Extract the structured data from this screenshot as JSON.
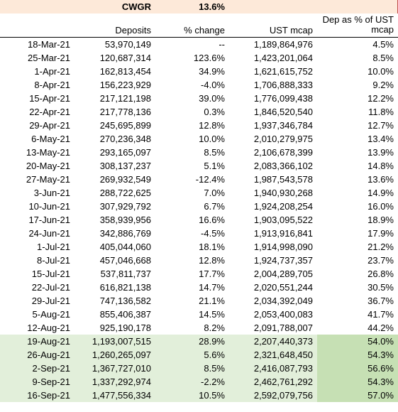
{
  "cwgr": {
    "label": "CWGR",
    "value": "13.6%"
  },
  "headers": {
    "date": "",
    "deposits": "Deposits",
    "change": "% change",
    "mcap": "UST mcap",
    "pct": "Dep as % of UST mcap"
  },
  "rows": [
    {
      "date": "18-Mar-21",
      "dep": "53,970,149",
      "chg": "--",
      "mcap": "1,189,864,976",
      "pct": "4.5%",
      "hl": false
    },
    {
      "date": "25-Mar-21",
      "dep": "120,687,314",
      "chg": "123.6%",
      "mcap": "1,423,201,064",
      "pct": "8.5%",
      "hl": false
    },
    {
      "date": "1-Apr-21",
      "dep": "162,813,454",
      "chg": "34.9%",
      "mcap": "1,621,615,752",
      "pct": "10.0%",
      "hl": false
    },
    {
      "date": "8-Apr-21",
      "dep": "156,223,929",
      "chg": "-4.0%",
      "mcap": "1,706,888,333",
      "pct": "9.2%",
      "hl": false
    },
    {
      "date": "15-Apr-21",
      "dep": "217,121,198",
      "chg": "39.0%",
      "mcap": "1,776,099,438",
      "pct": "12.2%",
      "hl": false
    },
    {
      "date": "22-Apr-21",
      "dep": "217,778,136",
      "chg": "0.3%",
      "mcap": "1,846,520,540",
      "pct": "11.8%",
      "hl": false
    },
    {
      "date": "29-Apr-21",
      "dep": "245,695,899",
      "chg": "12.8%",
      "mcap": "1,937,346,784",
      "pct": "12.7%",
      "hl": false
    },
    {
      "date": "6-May-21",
      "dep": "270,236,348",
      "chg": "10.0%",
      "mcap": "2,010,279,975",
      "pct": "13.4%",
      "hl": false
    },
    {
      "date": "13-May-21",
      "dep": "293,165,097",
      "chg": "8.5%",
      "mcap": "2,106,678,399",
      "pct": "13.9%",
      "hl": false
    },
    {
      "date": "20-May-21",
      "dep": "308,137,237",
      "chg": "5.1%",
      "mcap": "2,083,366,102",
      "pct": "14.8%",
      "hl": false
    },
    {
      "date": "27-May-21",
      "dep": "269,932,549",
      "chg": "-12.4%",
      "mcap": "1,987,543,578",
      "pct": "13.6%",
      "hl": false
    },
    {
      "date": "3-Jun-21",
      "dep": "288,722,625",
      "chg": "7.0%",
      "mcap": "1,940,930,268",
      "pct": "14.9%",
      "hl": false
    },
    {
      "date": "10-Jun-21",
      "dep": "307,929,792",
      "chg": "6.7%",
      "mcap": "1,924,208,254",
      "pct": "16.0%",
      "hl": false
    },
    {
      "date": "17-Jun-21",
      "dep": "358,939,956",
      "chg": "16.6%",
      "mcap": "1,903,095,522",
      "pct": "18.9%",
      "hl": false
    },
    {
      "date": "24-Jun-21",
      "dep": "342,886,769",
      "chg": "-4.5%",
      "mcap": "1,913,916,841",
      "pct": "17.9%",
      "hl": false
    },
    {
      "date": "1-Jul-21",
      "dep": "405,044,060",
      "chg": "18.1%",
      "mcap": "1,914,998,090",
      "pct": "21.2%",
      "hl": false
    },
    {
      "date": "8-Jul-21",
      "dep": "457,046,668",
      "chg": "12.8%",
      "mcap": "1,924,737,357",
      "pct": "23.7%",
      "hl": false
    },
    {
      "date": "15-Jul-21",
      "dep": "537,811,737",
      "chg": "17.7%",
      "mcap": "2,004,289,705",
      "pct": "26.8%",
      "hl": false
    },
    {
      "date": "22-Jul-21",
      "dep": "616,821,138",
      "chg": "14.7%",
      "mcap": "2,020,551,244",
      "pct": "30.5%",
      "hl": false
    },
    {
      "date": "29-Jul-21",
      "dep": "747,136,582",
      "chg": "21.1%",
      "mcap": "2,034,392,049",
      "pct": "36.7%",
      "hl": false
    },
    {
      "date": "5-Aug-21",
      "dep": "855,406,387",
      "chg": "14.5%",
      "mcap": "2,053,400,083",
      "pct": "41.7%",
      "hl": false
    },
    {
      "date": "12-Aug-21",
      "dep": "925,190,178",
      "chg": "8.2%",
      "mcap": "2,091,788,007",
      "pct": "44.2%",
      "hl": false
    },
    {
      "date": "19-Aug-21",
      "dep": "1,193,007,515",
      "chg": "28.9%",
      "mcap": "2,207,440,373",
      "pct": "54.0%",
      "hl": true
    },
    {
      "date": "26-Aug-21",
      "dep": "1,260,265,097",
      "chg": "5.6%",
      "mcap": "2,321,648,450",
      "pct": "54.3%",
      "hl": true
    },
    {
      "date": "2-Sep-21",
      "dep": "1,367,727,010",
      "chg": "8.5%",
      "mcap": "2,416,087,793",
      "pct": "56.6%",
      "hl": true
    },
    {
      "date": "9-Sep-21",
      "dep": "1,337,292,974",
      "chg": "-2.2%",
      "mcap": "2,462,761,292",
      "pct": "54.3%",
      "hl": true
    },
    {
      "date": "16-Sep-21",
      "dep": "1,477,556,334",
      "chg": "10.5%",
      "mcap": "2,592,079,756",
      "pct": "57.0%",
      "hl": true
    }
  ]
}
